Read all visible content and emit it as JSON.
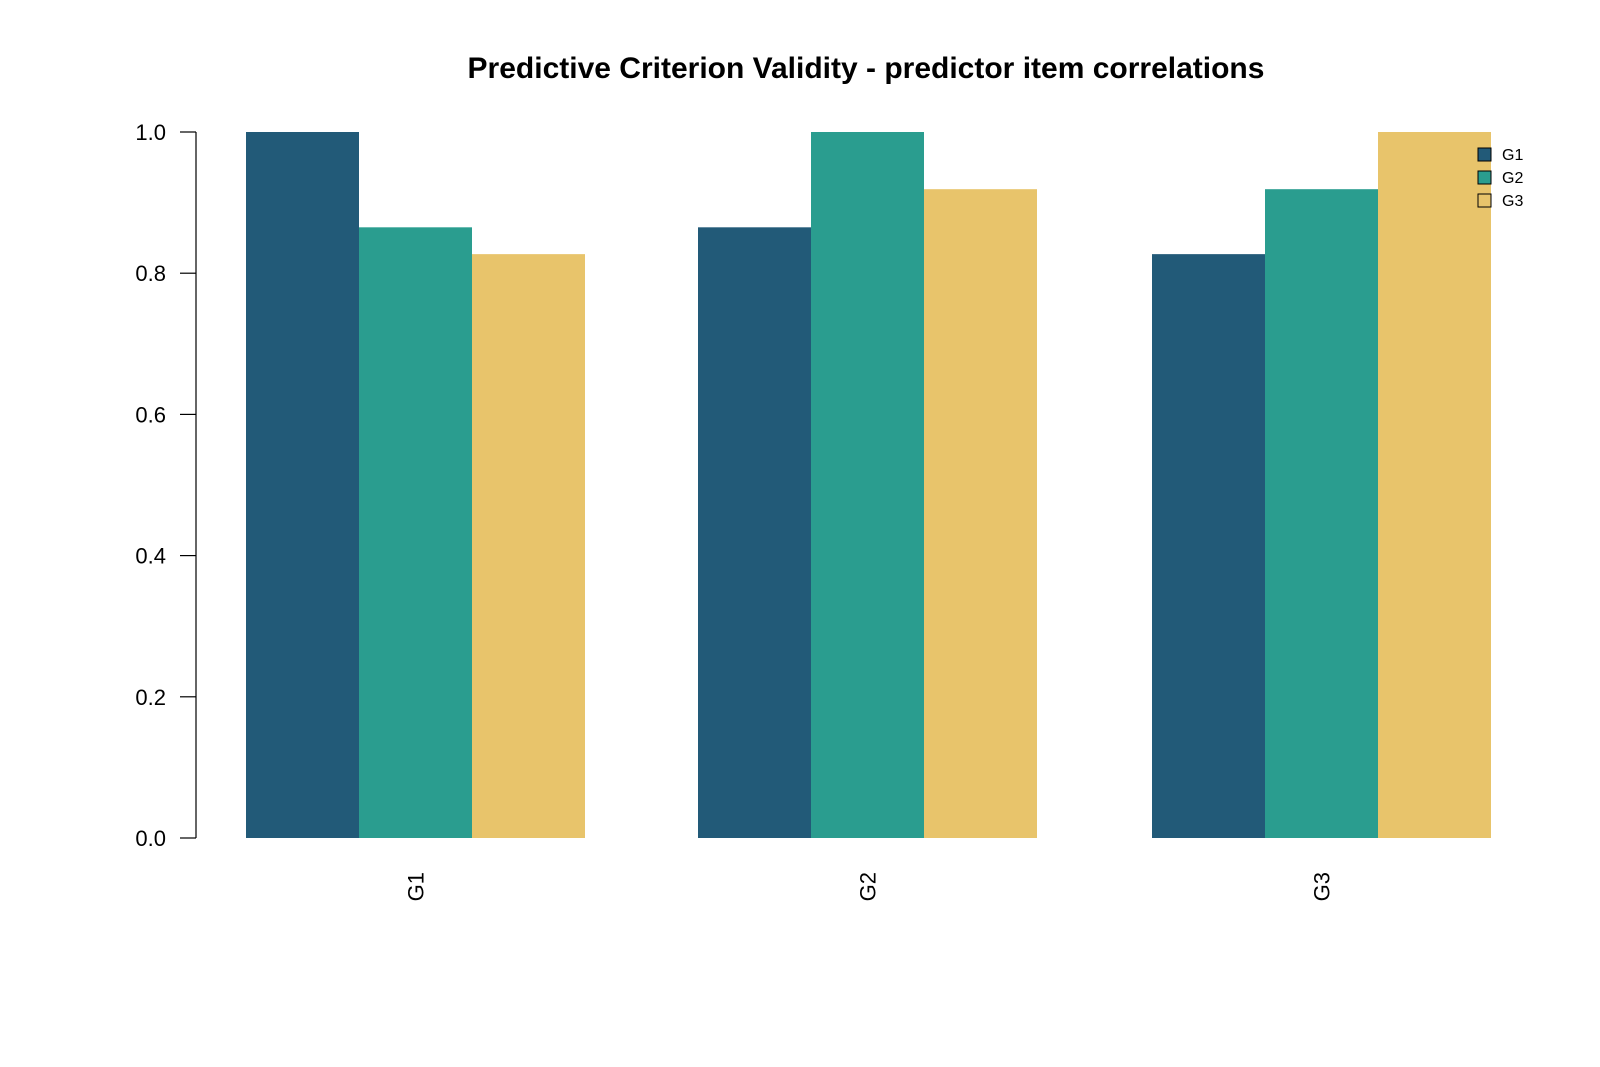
{
  "chart_data": {
    "type": "bar",
    "title": "Predictive Criterion Validity - predictor item correlations",
    "xlabel": "",
    "ylabel": "",
    "categories": [
      "G1",
      "G2",
      "G3"
    ],
    "series": [
      {
        "name": "G1",
        "color": "#225a78",
        "values": [
          1.0,
          0.865,
          0.827
        ]
      },
      {
        "name": "G2",
        "color": "#2a9d8f",
        "values": [
          0.865,
          1.0,
          0.919
        ]
      },
      {
        "name": "G3",
        "color": "#e8c46b",
        "values": [
          0.827,
          0.919,
          1.0
        ]
      }
    ],
    "ylim": [
      0,
      1
    ],
    "yticks": [
      "0.0",
      "0.2",
      "0.4",
      "0.6",
      "0.8",
      "1.0"
    ],
    "grid": false,
    "legend_position": "top-right"
  }
}
